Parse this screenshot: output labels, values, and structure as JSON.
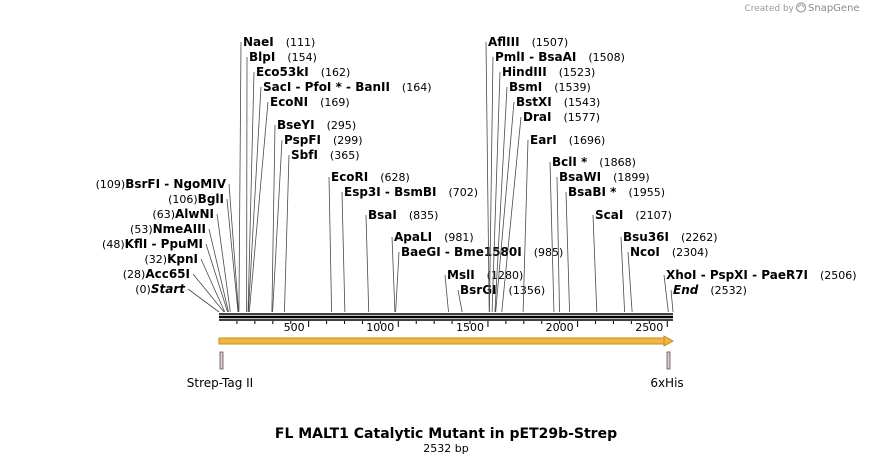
{
  "credit": {
    "prefix": "Created by",
    "brand": "SnapGene"
  },
  "map": {
    "title": "FL MALT1 Catalytic Mutant  in pET29b-Strep",
    "length_label": "2532 bp",
    "length": 2532,
    "ticks": [
      "500",
      "1000",
      "1500",
      "2000",
      "2500"
    ]
  },
  "features": [
    {
      "name": "Strep-Tag II",
      "start": 1,
      "end": 30
    },
    {
      "name": "6xHis",
      "start": 2506,
      "end": 2532
    },
    {
      "name": "orf",
      "start": 1,
      "end": 2532
    }
  ],
  "sites_left": [
    {
      "names": [
        "NaeI"
      ],
      "pos_label": "(111)",
      "pos": 111
    },
    {
      "names": [
        "BlpI"
      ],
      "pos_label": "(154)",
      "pos": 154
    },
    {
      "names": [
        "Eco53kI"
      ],
      "pos_label": "(162)",
      "pos": 162
    },
    {
      "names": [
        "SacI",
        "PfoI *",
        "BanII"
      ],
      "pos_label": "(164)",
      "pos": 164
    },
    {
      "names": [
        "EcoNI"
      ],
      "pos_label": "(169)",
      "pos": 169
    },
    {
      "names": [
        "BseYI"
      ],
      "pos_label": "(295)",
      "pos": 295
    },
    {
      "names": [
        "PspFI"
      ],
      "pos_label": "(299)",
      "pos": 299
    },
    {
      "names": [
        "SbfI"
      ],
      "pos_label": "(365)",
      "pos": 365
    },
    {
      "names": [
        "EcoRI"
      ],
      "pos_label": "(628)",
      "pos": 628
    },
    {
      "names": [
        "Esp3I",
        "BsmBI"
      ],
      "pos_label": "(702)",
      "pos": 702
    },
    {
      "names": [
        "BsaI"
      ],
      "pos_label": "(835)",
      "pos": 835
    },
    {
      "names": [
        "ApaLI"
      ],
      "pos_label": "(981)",
      "pos": 981
    },
    {
      "names": [
        "BaeGI",
        "Bme1580I"
      ],
      "pos_label": "(985)",
      "pos": 985
    },
    {
      "names": [
        "MslI"
      ],
      "pos_label": "(1280)",
      "pos": 1280
    },
    {
      "names": [
        "BsrGI"
      ],
      "pos_label": "(1356)",
      "pos": 1356
    }
  ],
  "sites_before": [
    {
      "names": [
        "BsrFI",
        "NgoMIV"
      ],
      "pos_label": "(109)",
      "pos": 109
    },
    {
      "names": [
        "BglI"
      ],
      "pos_label": "(106)",
      "pos": 106
    },
    {
      "names": [
        "AlwNI"
      ],
      "pos_label": "(63)",
      "pos": 63
    },
    {
      "names": [
        "NmeAIII"
      ],
      "pos_label": "(53)",
      "pos": 53
    },
    {
      "names": [
        "KflI",
        "PpuMI"
      ],
      "pos_label": "(48)",
      "pos": 48
    },
    {
      "names": [
        "KpnI"
      ],
      "pos_label": "(32)",
      "pos": 32
    },
    {
      "names": [
        "Acc65I"
      ],
      "pos_label": "(28)",
      "pos": 28
    },
    {
      "names": [
        "Start"
      ],
      "pos_label": "(0)",
      "pos": 0
    }
  ],
  "sites_right": [
    {
      "names": [
        "AflIII"
      ],
      "pos_label": "(1507)",
      "pos": 1507
    },
    {
      "names": [
        "PmlI",
        "BsaAI"
      ],
      "pos_label": "(1508)",
      "pos": 1508
    },
    {
      "names": [
        "HindIII"
      ],
      "pos_label": "(1523)",
      "pos": 1523
    },
    {
      "names": [
        "BsmI"
      ],
      "pos_label": "(1539)",
      "pos": 1539
    },
    {
      "names": [
        "BstXI"
      ],
      "pos_label": "(1543)",
      "pos": 1543
    },
    {
      "names": [
        "DraI"
      ],
      "pos_label": "(1577)",
      "pos": 1577
    },
    {
      "names": [
        "EarI"
      ],
      "pos_label": "(1696)",
      "pos": 1696
    },
    {
      "names": [
        "BclI *"
      ],
      "pos_label": "(1868)",
      "pos": 1868
    },
    {
      "names": [
        "BsaWI"
      ],
      "pos_label": "(1899)",
      "pos": 1899
    },
    {
      "names": [
        "BsaBI *"
      ],
      "pos_label": "(1955)",
      "pos": 1955
    },
    {
      "names": [
        "ScaI"
      ],
      "pos_label": "(2107)",
      "pos": 2107
    },
    {
      "names": [
        "Bsu36I"
      ],
      "pos_label": "(2262)",
      "pos": 2262
    },
    {
      "names": [
        "NcoI"
      ],
      "pos_label": "(2304)",
      "pos": 2304
    },
    {
      "names": [
        "XhoI",
        "PspXI",
        "PaeR7I"
      ],
      "pos_label": "(2506)",
      "pos": 2506
    },
    {
      "names": [
        "End"
      ],
      "pos_label": "(2532)",
      "pos": 2532
    }
  ],
  "colors": {
    "feature_fill": "#f2b544",
    "feature_edge": "#c98a1a",
    "marker_fill": "#e8c7c7"
  }
}
